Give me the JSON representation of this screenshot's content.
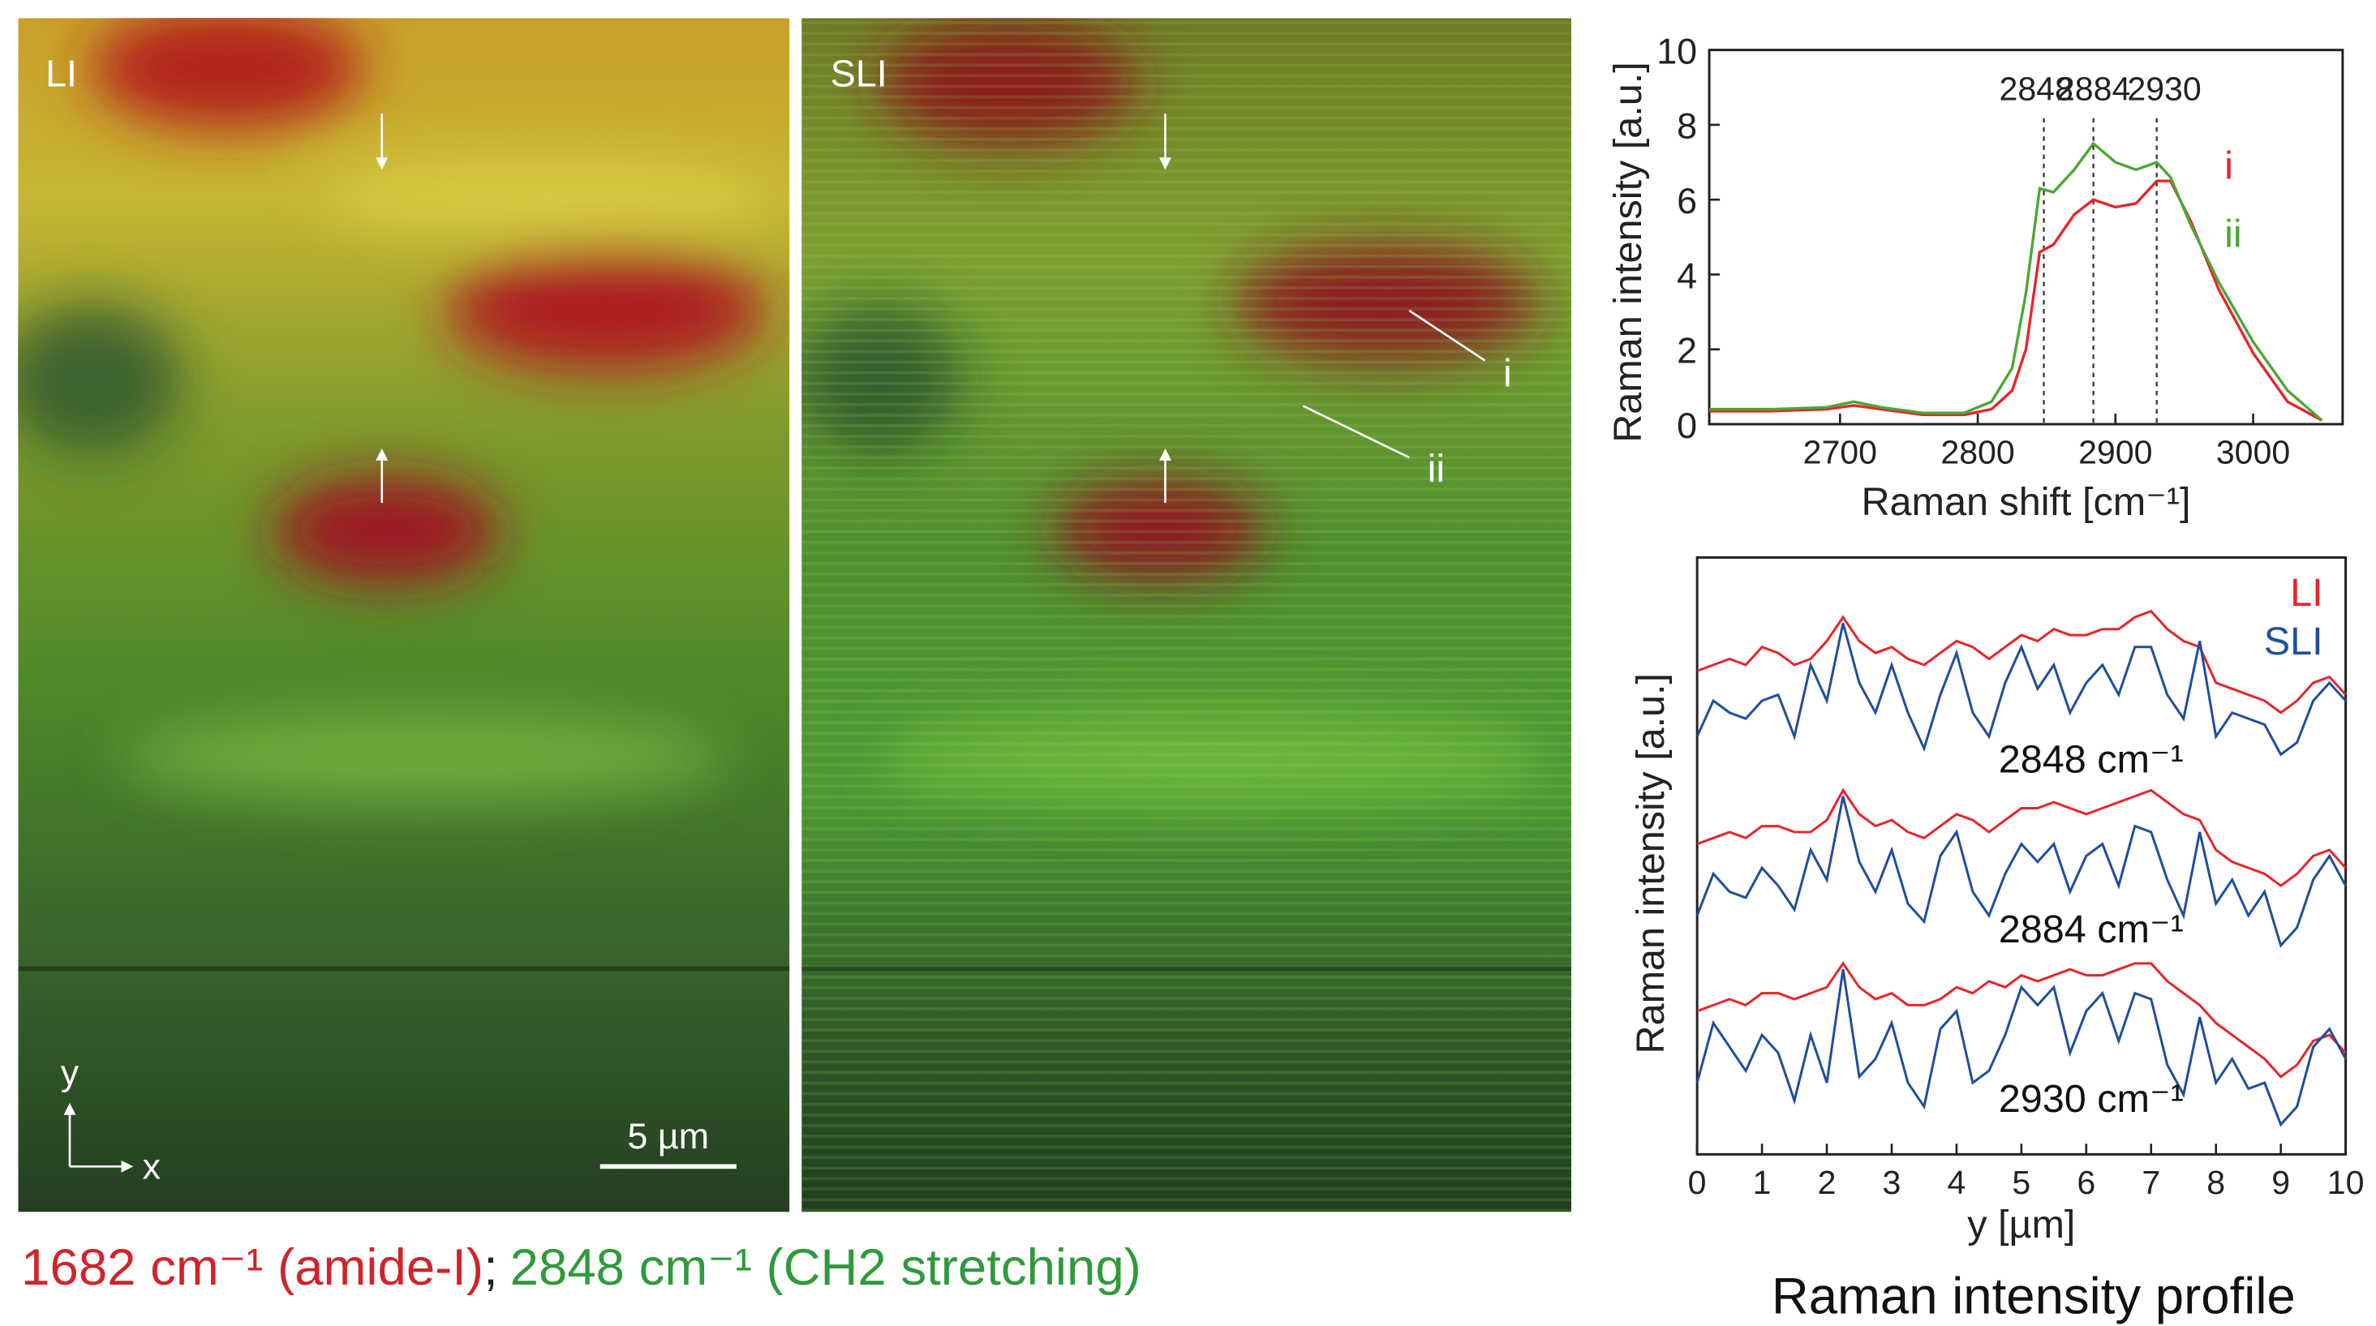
{
  "images": [
    {
      "label": "LI"
    },
    {
      "label": "SLI",
      "markers": [
        "i",
        "ii"
      ]
    }
  ],
  "scale_bar": "5 µm",
  "axes": {
    "y": "y",
    "x": "x"
  },
  "caption": [
    {
      "text": "1682 cm⁻¹ (amide-I)",
      "color": "#d2232a"
    },
    {
      "text": ";",
      "color": "#222222"
    },
    {
      "text": "2848 cm⁻¹ (CH2 stretching)",
      "color": "#2f9a3c"
    }
  ],
  "chart_data": [
    {
      "type": "line",
      "x_label": "Raman shift [cm⁻¹]",
      "y_label": "Raman intensity [a.u.]",
      "xlim": [
        2605,
        3065
      ],
      "ylim": [
        0,
        10
      ],
      "xticks": [
        2700,
        2800,
        2900,
        3000
      ],
      "yticks": [
        0,
        2,
        4,
        6,
        8,
        10
      ],
      "peaks": [
        2848,
        2884,
        2930
      ],
      "x": [
        2605,
        2650,
        2690,
        2710,
        2730,
        2760,
        2790,
        2810,
        2825,
        2835,
        2845,
        2855,
        2870,
        2884,
        2900,
        2915,
        2930,
        2940,
        2955,
        2975,
        3000,
        3025,
        3050
      ],
      "series": [
        {
          "name": "i",
          "color": "#e8242b",
          "values": [
            0.35,
            0.35,
            0.4,
            0.5,
            0.4,
            0.25,
            0.25,
            0.4,
            0.9,
            2.0,
            4.6,
            4.8,
            5.6,
            6.0,
            5.8,
            5.9,
            6.5,
            6.5,
            5.4,
            3.6,
            1.9,
            0.6,
            0.1
          ]
        },
        {
          "name": "ii",
          "color": "#4aa832",
          "values": [
            0.4,
            0.4,
            0.45,
            0.6,
            0.45,
            0.3,
            0.3,
            0.6,
            1.5,
            3.5,
            6.3,
            6.2,
            6.8,
            7.5,
            7.0,
            6.8,
            7.0,
            6.6,
            5.3,
            3.8,
            2.2,
            0.9,
            0.1
          ]
        }
      ]
    },
    {
      "type": "profile",
      "title": "Raman intensity profile",
      "x_label": "y [µm]",
      "y_label": "Raman intensity [a.u.]",
      "xlim": [
        0,
        10
      ],
      "ylim": [
        0,
        100
      ],
      "xticks": [
        0,
        1,
        2,
        3,
        4,
        5,
        6,
        7,
        8,
        9,
        10
      ],
      "x": [
        0,
        0.25,
        0.5,
        0.75,
        1,
        1.25,
        1.5,
        1.75,
        2,
        2.25,
        2.5,
        2.75,
        3,
        3.25,
        3.5,
        3.75,
        4,
        4.25,
        4.5,
        4.75,
        5,
        5.25,
        5.5,
        5.75,
        6,
        6.25,
        6.5,
        6.75,
        7,
        7.25,
        7.5,
        7.75,
        8,
        8.25,
        8.5,
        8.75,
        9,
        9.25,
        9.5,
        9.75,
        10
      ],
      "profiles": [
        {
          "label": "2848 cm⁻¹",
          "series": [
            {
              "name": "LI",
              "color": "#e8242b",
              "values": [
                81,
                82,
                83,
                82,
                85,
                84,
                82,
                83,
                86,
                90,
                86,
                84,
                85,
                83,
                82,
                84,
                86,
                85,
                83,
                85,
                87,
                86,
                88,
                87,
                87,
                88,
                88,
                90,
                91,
                88,
                86,
                85,
                79,
                78,
                77,
                76,
                74,
                76,
                79,
                80,
                77
              ]
            },
            {
              "name": "SLI",
              "color": "#1f4e9c",
              "values": [
                70,
                76,
                74,
                73,
                76,
                77,
                70,
                82,
                76,
                89,
                79,
                74,
                82,
                74,
                68,
                77,
                84,
                74,
                70,
                79,
                85,
                78,
                82,
                74,
                79,
                82,
                77,
                85,
                85,
                77,
                73,
                86,
                70,
                74,
                73,
                72,
                67,
                69,
                76,
                79,
                76
              ]
            }
          ]
        },
        {
          "label": "2884 cm⁻¹",
          "series": [
            {
              "name": "LI",
              "color": "#e8242b",
              "values": [
                52,
                53,
                54,
                53,
                55,
                55,
                54,
                54,
                56,
                61,
                57,
                55,
                56,
                54,
                53,
                55,
                57,
                56,
                54,
                56,
                58,
                58,
                59,
                58,
                57,
                58,
                59,
                60,
                61,
                59,
                57,
                56,
                51,
                49,
                48,
                47,
                45,
                47,
                50,
                51,
                48
              ]
            },
            {
              "name": "SLI",
              "color": "#1f4e9c",
              "values": [
                40,
                47,
                44,
                43,
                48,
                45,
                41,
                51,
                46,
                60,
                49,
                44,
                51,
                42,
                39,
                50,
                54,
                44,
                40,
                47,
                52,
                49,
                52,
                44,
                50,
                52,
                45,
                55,
                54,
                46,
                40,
                54,
                42,
                46,
                40,
                44,
                35,
                38,
                46,
                50,
                45
              ]
            }
          ]
        },
        {
          "label": "2930 cm⁻¹",
          "series": [
            {
              "name": "LI",
              "color": "#e8242b",
              "values": [
                24,
                25,
                26,
                25,
                27,
                27,
                26,
                27,
                28,
                32,
                28,
                26,
                27,
                25,
                25,
                26,
                28,
                27,
                29,
                28,
                30,
                29,
                30,
                31,
                30,
                30,
                31,
                32,
                32,
                29,
                27,
                25,
                22,
                20,
                18,
                16,
                13,
                15,
                19,
                20,
                17
              ]
            },
            {
              "name": "SLI",
              "color": "#1f4e9c",
              "values": [
                12,
                22,
                18,
                14,
                20,
                17,
                9,
                20,
                12,
                31,
                13,
                16,
                22,
                12,
                8,
                21,
                24,
                12,
                14,
                20,
                28,
                25,
                28,
                17,
                24,
                27,
                19,
                27,
                26,
                15,
                10,
                23,
                12,
                16,
                11,
                12,
                5,
                8,
                18,
                21,
                16
              ]
            }
          ]
        }
      ]
    }
  ]
}
